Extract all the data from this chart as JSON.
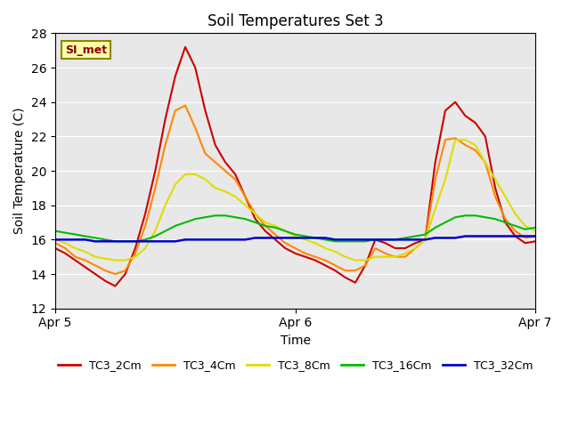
{
  "title": "Soil Temperatures Set 3",
  "xlabel": "Time",
  "ylabel": "Soil Temperature (C)",
  "ylim": [
    12,
    28
  ],
  "yticks": [
    12,
    14,
    16,
    18,
    20,
    22,
    24,
    26,
    28
  ],
  "xlim": [
    0,
    48
  ],
  "xtick_positions": [
    0,
    24,
    48
  ],
  "xtick_labels": [
    "Apr 5",
    "Apr 6",
    "Apr 7"
  ],
  "bg_color": "#e8e8e8",
  "legend_label": "SI_met",
  "series": {
    "TC3_2Cm": {
      "color": "#cc0000",
      "linewidth": 1.5,
      "x": [
        0,
        1,
        2,
        3,
        4,
        5,
        6,
        7,
        8,
        9,
        10,
        11,
        12,
        13,
        14,
        15,
        16,
        17,
        18,
        19,
        20,
        21,
        22,
        23,
        24,
        25,
        26,
        27,
        28,
        29,
        30,
        31,
        32,
        33,
        34,
        35,
        36,
        37,
        38,
        39,
        40,
        41,
        42,
        43,
        44,
        45,
        46,
        47,
        48
      ],
      "y": [
        15.5,
        15.2,
        14.8,
        14.4,
        14.0,
        13.6,
        13.3,
        14.0,
        15.5,
        17.5,
        20.0,
        23.0,
        25.5,
        27.2,
        26.0,
        23.5,
        21.5,
        20.5,
        19.8,
        18.5,
        17.2,
        16.5,
        16.0,
        15.5,
        15.2,
        15.0,
        14.8,
        14.5,
        14.2,
        13.8,
        13.5,
        14.5,
        16.0,
        15.8,
        15.5,
        15.5,
        15.8,
        16.0,
        20.5,
        23.5,
        24.0,
        23.2,
        22.8,
        22.0,
        19.0,
        17.0,
        16.2,
        15.8,
        15.9
      ]
    },
    "TC3_4Cm": {
      "color": "#ff8800",
      "linewidth": 1.5,
      "x": [
        0,
        1,
        2,
        3,
        4,
        5,
        6,
        7,
        8,
        9,
        10,
        11,
        12,
        13,
        14,
        15,
        16,
        17,
        18,
        19,
        20,
        21,
        22,
        23,
        24,
        25,
        26,
        27,
        28,
        29,
        30,
        31,
        32,
        33,
        34,
        35,
        36,
        37,
        38,
        39,
        40,
        41,
        42,
        43,
        44,
        45,
        46,
        47,
        48
      ],
      "y": [
        15.8,
        15.5,
        15.0,
        14.8,
        14.5,
        14.2,
        14.0,
        14.2,
        15.2,
        16.8,
        19.0,
        21.5,
        23.5,
        23.8,
        22.5,
        21.0,
        20.5,
        20.0,
        19.5,
        18.5,
        17.5,
        16.8,
        16.3,
        15.8,
        15.5,
        15.2,
        15.0,
        14.8,
        14.5,
        14.2,
        14.2,
        14.5,
        15.5,
        15.2,
        15.0,
        15.0,
        15.5,
        16.0,
        19.5,
        21.8,
        21.9,
        21.5,
        21.2,
        20.5,
        18.5,
        17.2,
        16.5,
        16.1,
        16.2
      ]
    },
    "TC3_8Cm": {
      "color": "#dddd00",
      "linewidth": 1.5,
      "x": [
        0,
        1,
        2,
        3,
        4,
        5,
        6,
        7,
        8,
        9,
        10,
        11,
        12,
        13,
        14,
        15,
        16,
        17,
        18,
        19,
        20,
        21,
        22,
        23,
        24,
        25,
        26,
        27,
        28,
        29,
        30,
        31,
        32,
        33,
        34,
        35,
        36,
        37,
        38,
        39,
        40,
        41,
        42,
        43,
        44,
        45,
        46,
        47,
        48
      ],
      "y": [
        16.0,
        15.8,
        15.5,
        15.3,
        15.0,
        14.9,
        14.8,
        14.8,
        15.0,
        15.5,
        16.5,
        18.0,
        19.2,
        19.8,
        19.8,
        19.5,
        19.0,
        18.8,
        18.5,
        18.0,
        17.5,
        17.0,
        16.8,
        16.5,
        16.2,
        16.0,
        15.8,
        15.5,
        15.3,
        15.0,
        14.8,
        14.8,
        15.0,
        15.0,
        15.0,
        15.2,
        15.5,
        16.0,
        17.8,
        19.5,
        21.8,
        21.8,
        21.5,
        20.5,
        19.5,
        18.5,
        17.5,
        16.8,
        16.5
      ]
    },
    "TC3_16Cm": {
      "color": "#00bb00",
      "linewidth": 1.5,
      "x": [
        0,
        1,
        2,
        3,
        4,
        5,
        6,
        7,
        8,
        9,
        10,
        11,
        12,
        13,
        14,
        15,
        16,
        17,
        18,
        19,
        20,
        21,
        22,
        23,
        24,
        25,
        26,
        27,
        28,
        29,
        30,
        31,
        32,
        33,
        34,
        35,
        36,
        37,
        38,
        39,
        40,
        41,
        42,
        43,
        44,
        45,
        46,
        47,
        48
      ],
      "y": [
        16.5,
        16.4,
        16.3,
        16.2,
        16.1,
        16.0,
        15.9,
        15.9,
        15.9,
        16.0,
        16.2,
        16.5,
        16.8,
        17.0,
        17.2,
        17.3,
        17.4,
        17.4,
        17.3,
        17.2,
        17.0,
        16.8,
        16.7,
        16.5,
        16.3,
        16.2,
        16.1,
        16.0,
        15.9,
        15.9,
        15.9,
        15.9,
        16.0,
        16.0,
        16.0,
        16.1,
        16.2,
        16.3,
        16.7,
        17.0,
        17.3,
        17.4,
        17.4,
        17.3,
        17.2,
        17.0,
        16.8,
        16.6,
        16.7
      ]
    },
    "TC3_32Cm": {
      "color": "#0000cc",
      "linewidth": 1.8,
      "x": [
        0,
        1,
        2,
        3,
        4,
        5,
        6,
        7,
        8,
        9,
        10,
        11,
        12,
        13,
        14,
        15,
        16,
        17,
        18,
        19,
        20,
        21,
        22,
        23,
        24,
        25,
        26,
        27,
        28,
        29,
        30,
        31,
        32,
        33,
        34,
        35,
        36,
        37,
        38,
        39,
        40,
        41,
        42,
        43,
        44,
        45,
        46,
        47,
        48
      ],
      "y": [
        16.0,
        16.0,
        16.0,
        16.0,
        15.9,
        15.9,
        15.9,
        15.9,
        15.9,
        15.9,
        15.9,
        15.9,
        15.9,
        16.0,
        16.0,
        16.0,
        16.0,
        16.0,
        16.0,
        16.0,
        16.1,
        16.1,
        16.1,
        16.1,
        16.1,
        16.1,
        16.1,
        16.1,
        16.0,
        16.0,
        16.0,
        16.0,
        16.0,
        16.0,
        16.0,
        16.0,
        16.0,
        16.0,
        16.1,
        16.1,
        16.1,
        16.2,
        16.2,
        16.2,
        16.2,
        16.2,
        16.2,
        16.2,
        16.2
      ]
    }
  }
}
